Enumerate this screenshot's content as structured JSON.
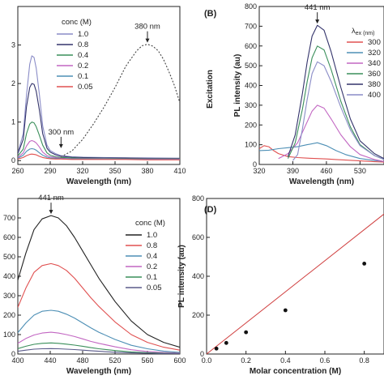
{
  "chart_data": [
    {
      "id": "A",
      "type": "line",
      "panel_label": "",
      "xlabel": "Wavelength (nm)",
      "ylabel": "",
      "xlim": [
        260,
        410
      ],
      "ylim": [
        -0.1,
        4.0
      ],
      "xticks": [
        260,
        290,
        320,
        350,
        380,
        410
      ],
      "yticks": [
        0,
        1,
        2,
        3
      ],
      "legend_title": "conc (M)",
      "legend_position": "top-left",
      "annotations": [
        {
          "text": "380 nm",
          "x": 380,
          "y": 3.02
        },
        {
          "text": "300 nm",
          "x": 300,
          "y": 0.28
        }
      ],
      "series": [
        {
          "name": "1.0",
          "color": "#8a8cc7",
          "x": [
            260,
            265,
            268,
            271,
            273,
            275,
            277,
            280,
            283,
            287,
            290,
            295,
            300,
            310,
            320,
            340,
            360,
            380,
            410
          ],
          "y": [
            0.2,
            0.7,
            1.7,
            2.5,
            2.72,
            2.68,
            2.4,
            1.7,
            0.9,
            0.4,
            0.26,
            0.18,
            0.13,
            0.1,
            0.09,
            0.08,
            0.07,
            0.07,
            0.06
          ]
        },
        {
          "name": "0.8",
          "color": "#33336b",
          "x": [
            260,
            265,
            268,
            271,
            273,
            275,
            277,
            280,
            283,
            287,
            290,
            295,
            300,
            310,
            320,
            340,
            360,
            380,
            410
          ],
          "y": [
            0.18,
            0.55,
            1.4,
            1.9,
            2.0,
            1.98,
            1.8,
            1.3,
            0.7,
            0.32,
            0.22,
            0.15,
            0.11,
            0.09,
            0.08,
            0.07,
            0.07,
            0.06,
            0.06
          ]
        },
        {
          "name": "0.4",
          "color": "#3a8f5a",
          "x": [
            260,
            265,
            268,
            271,
            273,
            275,
            277,
            280,
            283,
            287,
            290,
            295,
            300,
            310,
            320,
            340,
            360,
            380,
            410
          ],
          "y": [
            0.12,
            0.3,
            0.7,
            0.95,
            1.0,
            0.98,
            0.88,
            0.65,
            0.4,
            0.2,
            0.14,
            0.1,
            0.08,
            0.07,
            0.06,
            0.06,
            0.05,
            0.05,
            0.05
          ]
        },
        {
          "name": "0.2",
          "color": "#c266c2",
          "x": [
            260,
            265,
            268,
            271,
            273,
            275,
            277,
            280,
            283,
            287,
            290,
            295,
            300,
            310,
            320,
            340,
            360,
            380,
            410
          ],
          "y": [
            0.08,
            0.2,
            0.38,
            0.5,
            0.52,
            0.5,
            0.46,
            0.35,
            0.22,
            0.13,
            0.1,
            0.08,
            0.06,
            0.05,
            0.05,
            0.05,
            0.04,
            0.04,
            0.04
          ]
        },
        {
          "name": "0.1",
          "color": "#4d8fb5",
          "x": [
            260,
            265,
            268,
            271,
            273,
            275,
            277,
            280,
            283,
            287,
            290,
            295,
            300,
            310,
            320,
            340,
            360,
            380,
            410
          ],
          "y": [
            0.06,
            0.14,
            0.24,
            0.3,
            0.31,
            0.3,
            0.27,
            0.2,
            0.14,
            0.09,
            0.07,
            0.06,
            0.05,
            0.04,
            0.04,
            0.04,
            0.04,
            0.03,
            0.03
          ]
        },
        {
          "name": "0.05",
          "color": "#e05050",
          "x": [
            260,
            265,
            268,
            271,
            273,
            275,
            277,
            280,
            283,
            287,
            290,
            295,
            300,
            310,
            320,
            340,
            360,
            380,
            410
          ],
          "y": [
            0.04,
            0.08,
            0.13,
            0.16,
            0.17,
            0.16,
            0.15,
            0.11,
            0.08,
            0.06,
            0.05,
            0.04,
            0.04,
            0.03,
            0.03,
            0.03,
            0.03,
            0.02,
            0.02
          ]
        },
        {
          "name": "",
          "color": "#444444",
          "dashed": true,
          "x": [
            300,
            310,
            320,
            330,
            340,
            350,
            360,
            370,
            375,
            380,
            385,
            390,
            395,
            400,
            405,
            410
          ],
          "y": [
            0.1,
            0.25,
            0.55,
            0.95,
            1.4,
            1.9,
            2.45,
            2.85,
            2.98,
            3.02,
            2.97,
            2.85,
            2.62,
            2.3,
            1.95,
            1.5
          ]
        }
      ]
    },
    {
      "id": "B",
      "type": "line",
      "panel_label": "(B)",
      "xlabel": "Wavelength (nm)",
      "ylabel": "PL intensity (au)",
      "side_label": "Excitation",
      "xlim": [
        320,
        580
      ],
      "ylim": [
        0,
        800
      ],
      "xticks": [
        320,
        390,
        460,
        530
      ],
      "yticks": [
        0,
        100,
        200,
        300,
        400,
        500,
        600,
        700,
        800
      ],
      "legend_title": "λex (nm)",
      "legend_position": "top-right",
      "annotations": [
        {
          "text": "441 nm",
          "x": 441,
          "y": 705
        }
      ],
      "series": [
        {
          "name": "300",
          "color": "#e05050",
          "x": [
            320,
            330,
            340,
            350,
            360,
            380,
            400,
            420,
            440,
            460,
            480,
            500,
            530,
            560,
            580
          ],
          "y": [
            80,
            95,
            90,
            70,
            55,
            40,
            35,
            32,
            30,
            28,
            25,
            22,
            18,
            14,
            12
          ]
        },
        {
          "name": "320",
          "color": "#4d8fb5",
          "x": [
            320,
            340,
            360,
            380,
            400,
            420,
            441,
            460,
            480,
            500,
            530,
            560,
            580
          ],
          "y": [
            70,
            72,
            80,
            85,
            90,
            100,
            110,
            95,
            70,
            50,
            30,
            20,
            15
          ]
        },
        {
          "name": "340",
          "color": "#c266c2",
          "x": [
            360,
            380,
            400,
            415,
            430,
            441,
            455,
            470,
            490,
            510,
            530,
            560,
            580
          ],
          "y": [
            30,
            55,
            110,
            190,
            270,
            300,
            285,
            230,
            150,
            90,
            50,
            25,
            15
          ]
        },
        {
          "name": "360",
          "color": "#3a8f5a",
          "x": [
            380,
            395,
            410,
            420,
            430,
            441,
            455,
            470,
            490,
            510,
            530,
            560,
            580
          ],
          "y": [
            30,
            110,
            280,
            420,
            540,
            600,
            580,
            480,
            320,
            190,
            100,
            45,
            25
          ]
        },
        {
          "name": "380",
          "color": "#33336b",
          "x": [
            380,
            395,
            410,
            420,
            430,
            441,
            455,
            470,
            490,
            510,
            530,
            560,
            580
          ],
          "y": [
            40,
            150,
            360,
            520,
            650,
            705,
            680,
            570,
            390,
            230,
            120,
            55,
            30
          ]
        },
        {
          "name": "400",
          "color": "#8a8cc7",
          "x": [
            390,
            400,
            410,
            420,
            430,
            441,
            455,
            470,
            490,
            510,
            530,
            560,
            580
          ],
          "y": [
            20,
            50,
            180,
            330,
            460,
            520,
            500,
            420,
            290,
            175,
            95,
            45,
            25
          ]
        }
      ]
    },
    {
      "id": "C",
      "type": "line",
      "panel_label": "",
      "xlabel": "Wavelength (nm)",
      "ylabel": "",
      "xlim": [
        400,
        600
      ],
      "ylim": [
        0,
        800
      ],
      "xticks": [
        400,
        440,
        480,
        520,
        560,
        600
      ],
      "yticks": [
        0,
        100,
        200,
        300,
        400,
        500,
        600,
        700
      ],
      "legend_title": "conc (M)",
      "legend_position": "top-right",
      "annotations": [
        {
          "text": "441 nm",
          "x": 441,
          "y": 712
        }
      ],
      "series": [
        {
          "name": "1.0",
          "color": "#222222",
          "x": [
            400,
            410,
            420,
            430,
            441,
            450,
            460,
            470,
            480,
            490,
            500,
            520,
            540,
            560,
            580,
            600
          ],
          "y": [
            380,
            520,
            640,
            695,
            712,
            700,
            660,
            600,
            530,
            460,
            390,
            270,
            170,
            100,
            60,
            35
          ]
        },
        {
          "name": "0.8",
          "color": "#e05050",
          "x": [
            400,
            410,
            420,
            430,
            441,
            450,
            460,
            470,
            480,
            490,
            500,
            520,
            540,
            560,
            580,
            600
          ],
          "y": [
            240,
            340,
            420,
            455,
            465,
            455,
            430,
            390,
            340,
            290,
            245,
            165,
            100,
            60,
            35,
            20
          ]
        },
        {
          "name": "0.4",
          "color": "#4d8fb5",
          "x": [
            400,
            410,
            420,
            430,
            441,
            450,
            460,
            470,
            480,
            490,
            500,
            520,
            540,
            560,
            580,
            600
          ],
          "y": [
            110,
            160,
            200,
            220,
            225,
            220,
            205,
            185,
            160,
            135,
            112,
            75,
            45,
            27,
            15,
            8
          ]
        },
        {
          "name": "0.2",
          "color": "#c266c2",
          "x": [
            400,
            410,
            420,
            430,
            441,
            450,
            460,
            470,
            480,
            490,
            500,
            520,
            540,
            560,
            580,
            600
          ],
          "y": [
            55,
            80,
            98,
            108,
            112,
            108,
            100,
            90,
            78,
            65,
            55,
            37,
            22,
            13,
            8,
            5
          ]
        },
        {
          "name": "0.1",
          "color": "#3a8f5a",
          "x": [
            400,
            410,
            420,
            430,
            441,
            450,
            460,
            470,
            480,
            490,
            500,
            520,
            540,
            560,
            580,
            600
          ],
          "y": [
            28,
            40,
            50,
            55,
            57,
            55,
            51,
            46,
            40,
            33,
            27,
            18,
            11,
            7,
            4,
            3
          ]
        },
        {
          "name": "0.05",
          "color": "#5a5a8a",
          "x": [
            400,
            410,
            420,
            430,
            441,
            450,
            460,
            470,
            480,
            490,
            500,
            520,
            540,
            560,
            580,
            600
          ],
          "y": [
            14,
            20,
            25,
            27,
            28,
            27,
            25,
            23,
            20,
            17,
            14,
            9,
            6,
            4,
            2,
            2
          ]
        }
      ]
    },
    {
      "id": "D",
      "type": "scatter",
      "panel_label": "(D)",
      "xlabel": "Molar concentration (M)",
      "ylabel": "PL intensity (au)",
      "xlim": [
        0.0,
        0.9
      ],
      "ylim": [
        0,
        800
      ],
      "xticks": [
        0.0,
        0.2,
        0.4,
        0.6,
        0.8
      ],
      "yticks": [
        0,
        200,
        400,
        600,
        800
      ],
      "points": {
        "color": "#111111",
        "x": [
          0.05,
          0.1,
          0.2,
          0.4,
          0.8
        ],
        "y": [
          28,
          57,
          112,
          225,
          465
        ]
      },
      "fit_line": {
        "color": "#d04040",
        "x": [
          0.0,
          0.9
        ],
        "y": [
          0,
          720
        ]
      }
    }
  ]
}
